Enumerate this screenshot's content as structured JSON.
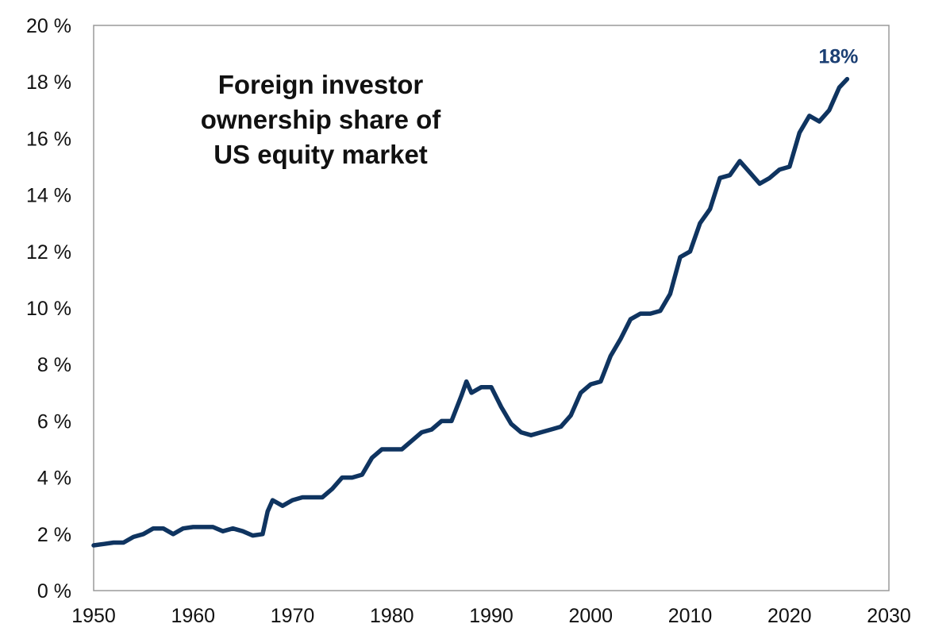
{
  "colors": {
    "line": "#0f3460",
    "annotation": "#1b3f73",
    "frame": "#9a9a9a",
    "text": "#111111"
  },
  "chart_data": {
    "type": "line",
    "title_lines": [
      "Foreign investor",
      "ownership share of",
      "US equity market"
    ],
    "xlabel": "",
    "ylabel": "",
    "xlim": [
      1950,
      2030
    ],
    "ylim": [
      0,
      20
    ],
    "x_ticks": [
      1950,
      1960,
      1970,
      1980,
      1990,
      2000,
      2010,
      2020,
      2030
    ],
    "x_tick_labels": [
      "1950",
      "1960",
      "1970",
      "1980",
      "1990",
      "2000",
      "2010",
      "2020",
      "2030"
    ],
    "y_ticks": [
      0,
      2,
      4,
      6,
      8,
      10,
      12,
      14,
      16,
      18,
      20
    ],
    "y_tick_labels": [
      "0 %",
      "2 %",
      "4 %",
      "6 %",
      "8 %",
      "10 %",
      "12 %",
      "14 %",
      "16 %",
      "18 %",
      "20 %"
    ],
    "grid": false,
    "annotation": {
      "text": "18%",
      "x": 2025.8,
      "y": 18.1
    },
    "series": [
      {
        "name": "Foreign investor ownership share of US equity market",
        "x": [
          1950,
          1951,
          1952,
          1953,
          1954,
          1955,
          1956,
          1957,
          1958,
          1959,
          1960,
          1961,
          1962,
          1963,
          1964,
          1965,
          1966,
          1967,
          1967.5,
          1968,
          1969,
          1970,
          1971,
          1972,
          1973,
          1974,
          1975,
          1976,
          1977,
          1978,
          1979,
          1980,
          1981,
          1982,
          1983,
          1984,
          1985,
          1986,
          1987,
          1987.5,
          1988,
          1989,
          1990,
          1991,
          1992,
          1993,
          1994,
          1995,
          1996,
          1997,
          1998,
          1999,
          2000,
          2001,
          2002,
          2003,
          2004,
          2005,
          2006,
          2007,
          2008,
          2009,
          2010,
          2011,
          2012,
          2013,
          2014,
          2015,
          2016,
          2017,
          2018,
          2019,
          2020,
          2021,
          2022,
          2023,
          2024,
          2025,
          2025.8
        ],
        "y": [
          1.6,
          1.65,
          1.7,
          1.7,
          1.9,
          2.0,
          2.2,
          2.2,
          2.0,
          2.2,
          2.25,
          2.25,
          2.25,
          2.1,
          2.2,
          2.1,
          1.95,
          2.0,
          2.8,
          3.2,
          3.0,
          3.2,
          3.3,
          3.3,
          3.3,
          3.6,
          4.0,
          4.0,
          4.1,
          4.7,
          5.0,
          5.0,
          5.0,
          5.3,
          5.6,
          5.7,
          6.0,
          6.0,
          6.9,
          7.4,
          7.0,
          7.2,
          7.2,
          6.5,
          5.9,
          5.6,
          5.5,
          5.6,
          5.7,
          5.8,
          6.2,
          7.0,
          7.3,
          7.4,
          8.3,
          8.9,
          9.6,
          9.8,
          9.8,
          9.9,
          10.5,
          11.8,
          12.0,
          13.0,
          13.5,
          14.6,
          14.7,
          15.2,
          14.8,
          14.4,
          14.6,
          14.9,
          15.0,
          16.2,
          16.8,
          16.6,
          17.0,
          17.8,
          18.1
        ]
      }
    ]
  }
}
